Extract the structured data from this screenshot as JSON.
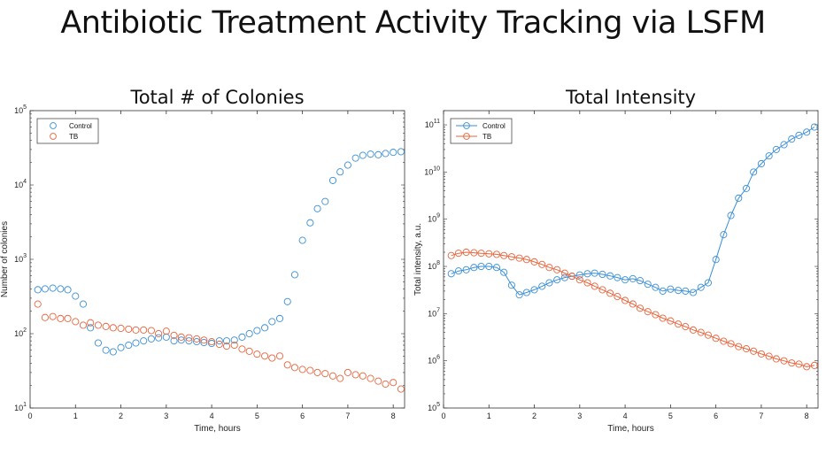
{
  "slide": {
    "title": "Antibiotic Treatment Activity Tracking via LSFM"
  },
  "colors": {
    "control": "#3a8fd6",
    "tb": "#e8643c"
  },
  "chart_data": [
    {
      "type": "scatter",
      "title": "Total # of Colonies",
      "xlabel": "Time, hours",
      "ylabel": "Number of colonies",
      "xlim": [
        0,
        8.25
      ],
      "ylim": [
        10,
        100000
      ],
      "yscale": "log",
      "xticks": [
        0,
        1,
        2,
        3,
        4,
        5,
        6,
        7,
        8
      ],
      "yticks": [
        1,
        2,
        3,
        4,
        5
      ],
      "legend": "top-left",
      "x": [
        0.17,
        0.33,
        0.5,
        0.67,
        0.83,
        1.0,
        1.17,
        1.33,
        1.5,
        1.67,
        1.83,
        2.0,
        2.17,
        2.33,
        2.5,
        2.67,
        2.83,
        3.0,
        3.17,
        3.33,
        3.5,
        3.67,
        3.83,
        4.0,
        4.17,
        4.33,
        4.5,
        4.67,
        4.83,
        5.0,
        5.17,
        5.33,
        5.5,
        5.67,
        5.83,
        6.0,
        6.17,
        6.33,
        6.5,
        6.67,
        6.83,
        7.0,
        7.17,
        7.33,
        7.5,
        7.67,
        7.83,
        8.0,
        8.17
      ],
      "series": [
        {
          "name": "Control",
          "values": [
            390,
            400,
            410,
            400,
            390,
            320,
            250,
            120,
            75,
            60,
            57,
            65,
            70,
            75,
            80,
            85,
            88,
            90,
            80,
            82,
            80,
            78,
            76,
            74,
            80,
            80,
            82,
            90,
            100,
            110,
            120,
            145,
            160,
            270,
            620,
            1800,
            3100,
            4800,
            6000,
            11500,
            15000,
            18500,
            23000,
            25000,
            26000,
            25500,
            26500,
            27500,
            28000
          ]
        },
        {
          "name": "TB",
          "values": [
            250,
            165,
            170,
            160,
            160,
            145,
            130,
            140,
            130,
            125,
            120,
            118,
            115,
            112,
            112,
            110,
            100,
            108,
            95,
            90,
            88,
            85,
            82,
            78,
            72,
            68,
            70,
            62,
            58,
            53,
            50,
            47,
            50,
            38,
            35,
            33,
            32,
            30,
            29,
            27,
            25,
            30,
            28,
            27,
            25,
            23,
            21,
            22,
            18
          ]
        }
      ]
    },
    {
      "type": "line",
      "title": "Total Intensity",
      "xlabel": "Time, hours",
      "ylabel": "Total intensity, a.u.",
      "xlim": [
        0,
        8.25
      ],
      "ylim": [
        100000,
        200000000000
      ],
      "yscale": "log",
      "xticks": [
        0,
        1,
        2,
        3,
        4,
        5,
        6,
        7,
        8
      ],
      "yticks": [
        5,
        6,
        7,
        8,
        9,
        10,
        11
      ],
      "legend": "top-left",
      "x": [
        0.17,
        0.33,
        0.5,
        0.67,
        0.83,
        1.0,
        1.17,
        1.33,
        1.5,
        1.67,
        1.83,
        2.0,
        2.17,
        2.33,
        2.5,
        2.67,
        2.83,
        3.0,
        3.17,
        3.33,
        3.5,
        3.67,
        3.83,
        4.0,
        4.17,
        4.33,
        4.5,
        4.67,
        4.83,
        5.0,
        5.17,
        5.33,
        5.5,
        5.67,
        5.83,
        6.0,
        6.17,
        6.33,
        6.5,
        6.67,
        6.83,
        7.0,
        7.17,
        7.33,
        7.5,
        7.67,
        7.83,
        8.0,
        8.17
      ],
      "series": [
        {
          "name": "Control",
          "values": [
            70000000,
            80000000,
            85000000,
            95000000,
            100000000,
            100000000,
            95000000,
            75000000,
            40000000,
            25000000,
            28000000,
            32000000,
            38000000,
            45000000,
            52000000,
            58000000,
            62000000,
            66000000,
            70000000,
            72000000,
            68000000,
            63000000,
            58000000,
            52000000,
            55000000,
            50000000,
            42000000,
            36000000,
            30000000,
            33000000,
            31000000,
            30000000,
            28000000,
            36000000,
            45000000,
            140000000,
            470000000,
            1200000000,
            2800000000,
            4500000000,
            10000000000,
            15000000000,
            22000000000,
            30000000000,
            38000000000,
            50000000000,
            60000000000,
            70000000000,
            90000000000
          ]
        },
        {
          "name": "TB",
          "values": [
            170000000,
            190000000,
            200000000,
            195000000,
            190000000,
            185000000,
            180000000,
            170000000,
            160000000,
            150000000,
            140000000,
            125000000,
            110000000,
            95000000,
            85000000,
            72000000,
            62000000,
            52000000,
            45000000,
            38000000,
            32000000,
            27000000,
            23000000,
            19000000,
            16000000,
            13000000,
            11000000,
            9500000,
            8000000,
            7000000,
            6000000,
            5300000,
            4500000,
            4000000,
            3500000,
            3000000,
            2600000,
            2300000,
            2000000,
            1800000,
            1600000,
            1400000,
            1250000,
            1100000,
            1000000,
            900000,
            850000,
            750000,
            800000
          ]
        }
      ]
    }
  ]
}
